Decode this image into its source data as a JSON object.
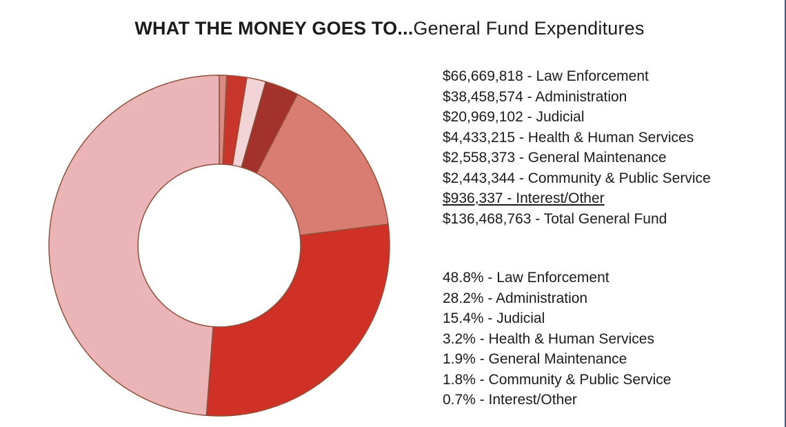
{
  "title": {
    "bold": "WHAT THE MONEY GOES TO...",
    "regular": "General Fund Expenditures"
  },
  "chart_data": {
    "type": "pie",
    "subtype": "donut",
    "title": "WHAT THE MONEY GOES TO...General Fund Expenditures",
    "separator": " - ",
    "slices": [
      {
        "label": "Law Enforcement",
        "amount_text": "$66,669,818",
        "percent_text": "48.8%",
        "value": 48.8,
        "color": "#EBB5B7",
        "underline": false
      },
      {
        "label": "Administration",
        "amount_text": "$38,458,574",
        "percent_text": "28.2%",
        "value": 28.2,
        "color": "#CF3126",
        "underline": false
      },
      {
        "label": "Judicial",
        "amount_text": "$20,969,102",
        "percent_text": "15.4%",
        "value": 15.4,
        "color": "#D97C71",
        "underline": false
      },
      {
        "label": "Health & Human Services",
        "amount_text": "$4,433,215",
        "percent_text": "3.2%",
        "value": 3.2,
        "color": "#A4322C",
        "underline": false
      },
      {
        "label": "General Maintenance",
        "amount_text": "$2,558,373",
        "percent_text": "1.9%",
        "value": 1.9,
        "color": "#C8352B",
        "underline": false
      },
      {
        "label": "Community & Public Service",
        "amount_text": "$2,443,344",
        "percent_text": "1.8%",
        "value": 1.8,
        "color": "#F3D4D6",
        "underline": false
      },
      {
        "label": "Interest/Other",
        "amount_text": "$936,337",
        "percent_text": "0.7%",
        "value": 0.7,
        "color": "#DB8A82",
        "underline": true
      }
    ],
    "total_line": {
      "amount_text": "$136,468,763",
      "label": "Total General Fund"
    },
    "draw_order_clockwise_from_top": [
      "Interest/Other",
      "General Maintenance",
      "Community & Public Service",
      "Health & Human Services",
      "Judicial",
      "Administration",
      "Law Enforcement"
    ],
    "geometry": {
      "outer_radius": 247,
      "inner_radius": 118,
      "start_angle_deg": 0
    },
    "stroke_color": "#8F4F38",
    "background": "#FFFFFF"
  },
  "page": {
    "right_border_color": "#46597E"
  }
}
